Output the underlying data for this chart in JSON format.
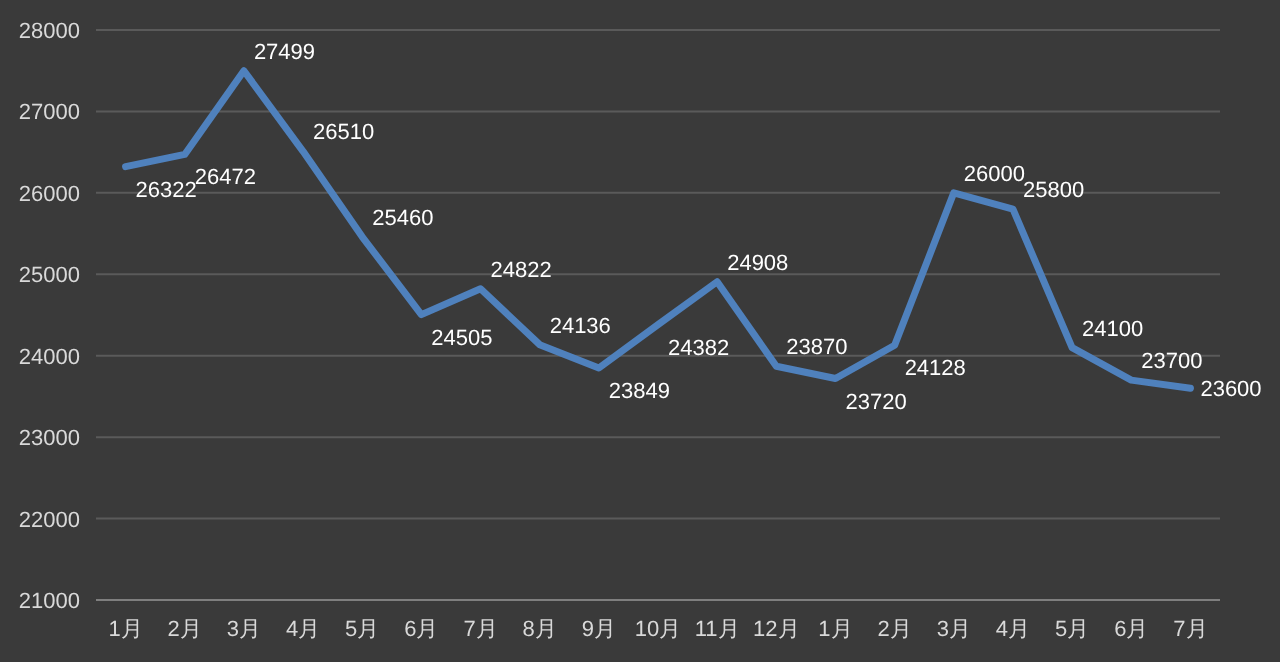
{
  "chart_data": {
    "type": "line",
    "categories": [
      "1月",
      "2月",
      "3月",
      "4月",
      "5月",
      "6月",
      "7月",
      "8月",
      "9月",
      "10月",
      "11月",
      "12月",
      "1月",
      "2月",
      "3月",
      "4月",
      "5月",
      "6月",
      "7月"
    ],
    "values": [
      26322,
      26472,
      27499,
      26510,
      25460,
      24505,
      24822,
      24136,
      23849,
      24382,
      24908,
      23870,
      23720,
      24128,
      26000,
      25800,
      24100,
      23700,
      23600
    ],
    "color": "#4f81bd",
    "ylim": [
      21000,
      28000
    ],
    "yticks": [
      21000,
      22000,
      23000,
      24000,
      25000,
      26000,
      27000,
      28000
    ],
    "grid": "y",
    "data_labels": true,
    "marker": "none",
    "line_style": "solid"
  }
}
